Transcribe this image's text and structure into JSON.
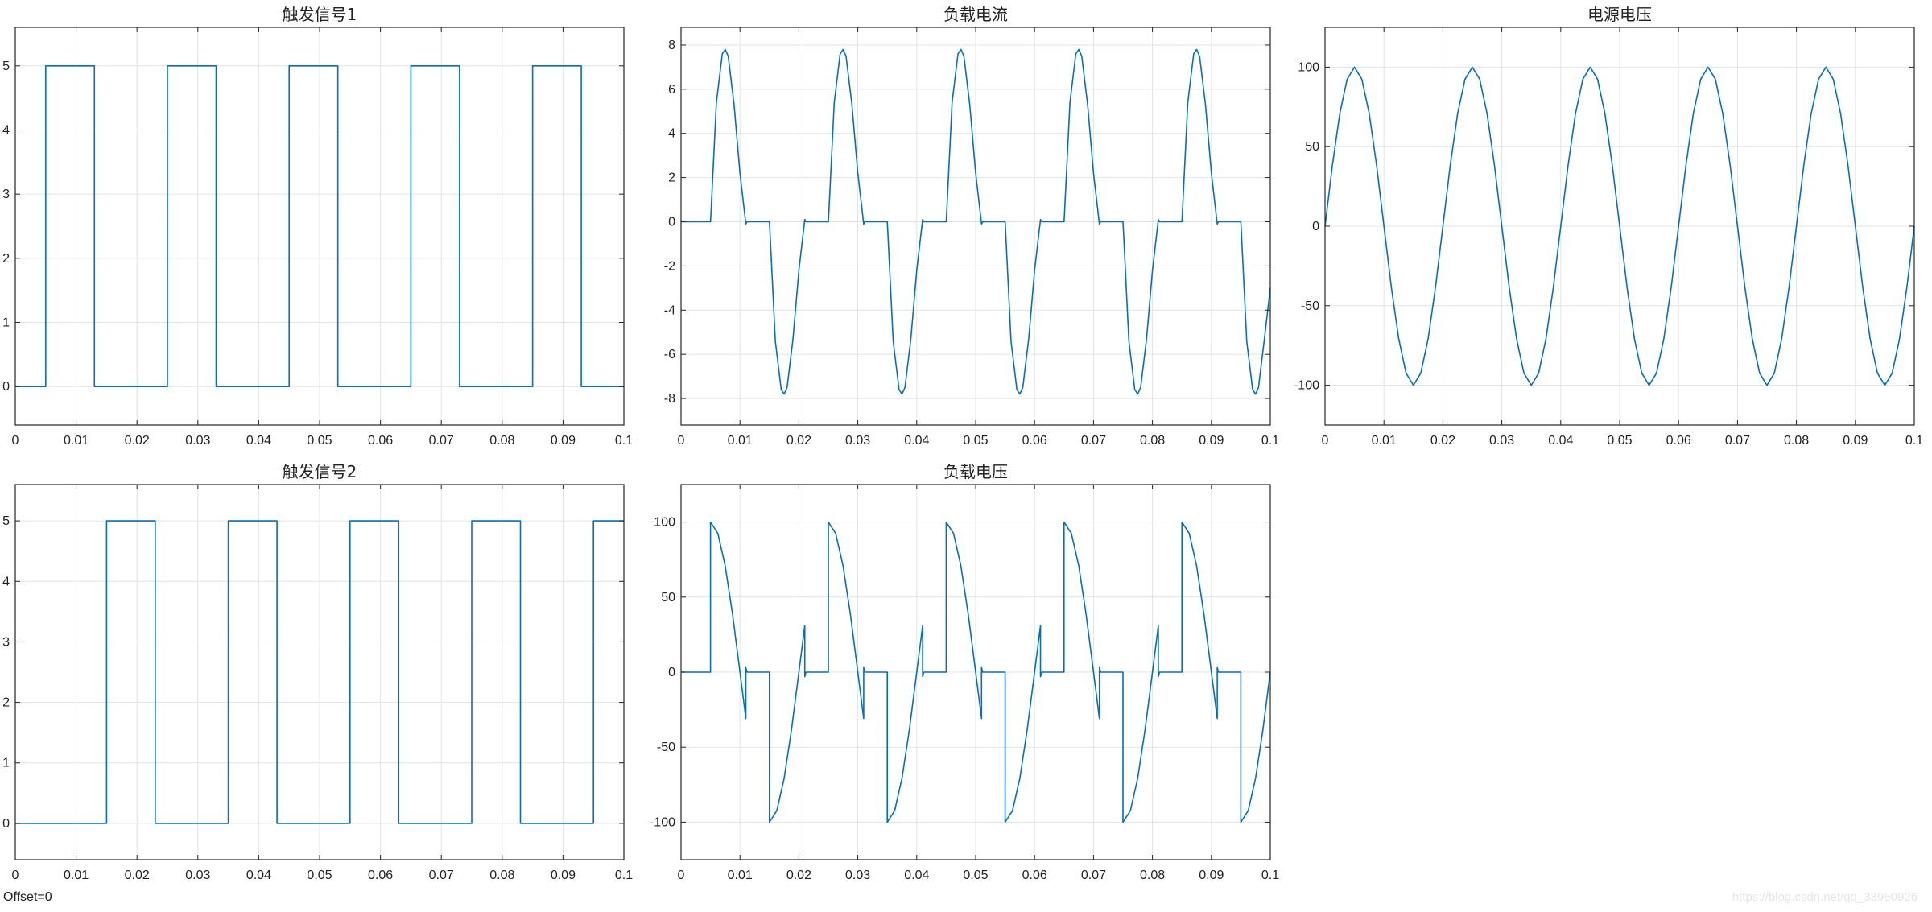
{
  "figure": {
    "offset_label": "Offset=0",
    "watermark": "https://blog.csdn.net/qq_33950926"
  },
  "style": {
    "line_color": "#0072BD",
    "grid_color": "#e3e3e3",
    "axis_color": "#262626"
  },
  "chart_data": [
    {
      "id": "trigger1",
      "type": "line",
      "title": "触发信号1",
      "xlim": [
        0,
        0.1
      ],
      "ylim": [
        -0.6,
        5.6
      ],
      "xticks": [
        0,
        0.01,
        0.02,
        0.03,
        0.04,
        0.05,
        0.06,
        0.07,
        0.08,
        0.09,
        0.1
      ],
      "yticks": [
        0,
        1,
        2,
        3,
        4,
        5
      ],
      "grid": true,
      "series": [
        {
          "x": [
            0,
            0.005,
            0.005,
            0.013,
            0.013,
            0.025,
            0.025,
            0.033,
            0.033,
            0.045,
            0.045,
            0.053,
            0.053,
            0.065,
            0.065,
            0.073,
            0.073,
            0.085,
            0.085,
            0.093,
            0.093,
            0.1
          ],
          "y": [
            0,
            0,
            5,
            5,
            0,
            0,
            5,
            5,
            0,
            0,
            5,
            5,
            0,
            0,
            5,
            5,
            0,
            0,
            5,
            5,
            0,
            0
          ]
        }
      ]
    },
    {
      "id": "load_current",
      "type": "line",
      "title": "负载电流",
      "xlim": [
        0,
        0.1
      ],
      "ylim": [
        -9.2,
        8.8
      ],
      "xticks": [
        0,
        0.01,
        0.02,
        0.03,
        0.04,
        0.05,
        0.06,
        0.07,
        0.08,
        0.09,
        0.1
      ],
      "yticks": [
        -8,
        -6,
        -4,
        -2,
        0,
        2,
        4,
        6,
        8
      ],
      "grid": true,
      "series": [
        {
          "x": [
            0,
            0.005,
            0.0051,
            0.006,
            0.007,
            0.0075,
            0.008,
            0.009,
            0.01,
            0.011,
            0.0112,
            0.0148,
            0.015,
            0.0151,
            0.016,
            0.017,
            0.0175,
            0.018,
            0.019,
            0.02,
            0.021,
            0.0212,
            0.0248,
            0.025,
            0.0251,
            0.026,
            0.027,
            0.0275,
            0.028,
            0.029,
            0.03,
            0.031,
            0.0312,
            0.0348,
            0.035,
            0.0351,
            0.036,
            0.037,
            0.0375,
            0.038,
            0.039,
            0.04,
            0.041,
            0.0412,
            0.0448,
            0.045,
            0.0451,
            0.046,
            0.047,
            0.0475,
            0.048,
            0.049,
            0.05,
            0.051,
            0.0512,
            0.0548,
            0.055,
            0.0551,
            0.056,
            0.057,
            0.0575,
            0.058,
            0.059,
            0.06,
            0.061,
            0.0612,
            0.0648,
            0.065,
            0.0651,
            0.066,
            0.067,
            0.0675,
            0.068,
            0.069,
            0.07,
            0.071,
            0.0712,
            0.0748,
            0.075,
            0.0751,
            0.076,
            0.077,
            0.0775,
            0.078,
            0.079,
            0.08,
            0.081,
            0.0812,
            0.0848,
            0.085,
            0.0851,
            0.086,
            0.087,
            0.0875,
            0.088,
            0.089,
            0.09,
            0.091,
            0.0912,
            0.0948,
            0.095,
            0.0951,
            0.096,
            0.097,
            0.0975,
            0.098,
            0.099,
            0.1
          ],
          "y": [
            0,
            0,
            0.5,
            5.4,
            7.6,
            7.8,
            7.5,
            5.3,
            2.2,
            -0.1,
            0,
            0,
            0,
            -0.5,
            -5.4,
            -7.6,
            -7.8,
            -7.5,
            -5.3,
            -2.2,
            0.1,
            0,
            0,
            0,
            0.5,
            5.4,
            7.6,
            7.8,
            7.5,
            5.3,
            2.2,
            -0.1,
            0,
            0,
            0,
            -0.5,
            -5.4,
            -7.6,
            -7.8,
            -7.5,
            -5.3,
            -2.2,
            0.1,
            0,
            0,
            0,
            0.5,
            5.4,
            7.6,
            7.8,
            7.5,
            5.3,
            2.2,
            -0.1,
            0,
            0,
            0,
            -0.5,
            -5.4,
            -7.6,
            -7.8,
            -7.5,
            -5.3,
            -2.2,
            0.1,
            0,
            0,
            0,
            0.5,
            5.4,
            7.6,
            7.8,
            7.5,
            5.3,
            2.2,
            -0.1,
            0,
            0,
            0,
            -0.5,
            -5.4,
            -7.6,
            -7.8,
            -7.5,
            -5.3,
            -2.2,
            0.1,
            0,
            0,
            0,
            0.5,
            5.4,
            7.6,
            7.8,
            7.5,
            5.3,
            2.2,
            -0.1,
            0,
            0,
            0,
            -0.5,
            -5.4,
            -7.6,
            -7.8,
            -7.5,
            -5.3,
            -3.0
          ]
        }
      ]
    },
    {
      "id": "source_voltage",
      "type": "line",
      "title": "电源电压",
      "xlim": [
        0,
        0.1
      ],
      "ylim": [
        -125,
        125
      ],
      "xticks": [
        0,
        0.01,
        0.02,
        0.03,
        0.04,
        0.05,
        0.06,
        0.07,
        0.08,
        0.09,
        0.1
      ],
      "yticks": [
        -100,
        -50,
        0,
        50,
        100
      ],
      "grid": true,
      "series": [
        {
          "x": [
            0,
            0.00125,
            0.0025,
            0.00375,
            0.005,
            0.00625,
            0.0075,
            0.00875,
            0.01,
            0.01125,
            0.0125,
            0.01375,
            0.015,
            0.01625,
            0.0175,
            0.01875,
            0.02,
            0.02125,
            0.0225,
            0.02375,
            0.025,
            0.02625,
            0.0275,
            0.02875,
            0.03,
            0.03125,
            0.0325,
            0.03375,
            0.035,
            0.03625,
            0.0375,
            0.03875,
            0.04,
            0.04125,
            0.0425,
            0.04375,
            0.045,
            0.04625,
            0.0475,
            0.04875,
            0.05,
            0.05125,
            0.0525,
            0.05375,
            0.055,
            0.05625,
            0.0575,
            0.05875,
            0.06,
            0.06125,
            0.0625,
            0.06375,
            0.065,
            0.06625,
            0.0675,
            0.06875,
            0.07,
            0.07125,
            0.0725,
            0.07375,
            0.075,
            0.07625,
            0.0775,
            0.07875,
            0.08,
            0.08125,
            0.0825,
            0.08375,
            0.085,
            0.08625,
            0.0875,
            0.08875,
            0.09,
            0.09125,
            0.0925,
            0.09375,
            0.095,
            0.09625,
            0.0975,
            0.09875,
            0.1
          ],
          "y": [
            0,
            38.3,
            70.7,
            92.4,
            100,
            92.4,
            70.7,
            38.3,
            0,
            -38.3,
            -70.7,
            -92.4,
            -100,
            -92.4,
            -70.7,
            -38.3,
            0,
            38.3,
            70.7,
            92.4,
            100,
            92.4,
            70.7,
            38.3,
            0,
            -38.3,
            -70.7,
            -92.4,
            -100,
            -92.4,
            -70.7,
            -38.3,
            0,
            38.3,
            70.7,
            92.4,
            100,
            92.4,
            70.7,
            38.3,
            0,
            -38.3,
            -70.7,
            -92.4,
            -100,
            -92.4,
            -70.7,
            -38.3,
            0,
            38.3,
            70.7,
            92.4,
            100,
            92.4,
            70.7,
            38.3,
            0,
            -38.3,
            -70.7,
            -92.4,
            -100,
            -92.4,
            -70.7,
            -38.3,
            0,
            38.3,
            70.7,
            92.4,
            100,
            92.4,
            70.7,
            38.3,
            0,
            -38.3,
            -70.7,
            -92.4,
            -100,
            -92.4,
            -70.7,
            -38.3,
            0
          ]
        }
      ]
    },
    {
      "id": "trigger2",
      "type": "line",
      "title": "触发信号2",
      "xlim": [
        0,
        0.1
      ],
      "ylim": [
        -0.6,
        5.6
      ],
      "xticks": [
        0,
        0.01,
        0.02,
        0.03,
        0.04,
        0.05,
        0.06,
        0.07,
        0.08,
        0.09,
        0.1
      ],
      "yticks": [
        0,
        1,
        2,
        3,
        4,
        5
      ],
      "grid": true,
      "series": [
        {
          "x": [
            0,
            0.015,
            0.015,
            0.023,
            0.023,
            0.035,
            0.035,
            0.043,
            0.043,
            0.055,
            0.055,
            0.063,
            0.063,
            0.075,
            0.075,
            0.083,
            0.083,
            0.095,
            0.095,
            0.1
          ],
          "y": [
            0,
            0,
            5,
            5,
            0,
            0,
            5,
            5,
            0,
            0,
            5,
            5,
            0,
            0,
            5,
            5,
            0,
            0,
            5,
            5
          ]
        }
      ]
    },
    {
      "id": "load_voltage",
      "type": "line",
      "title": "负载电压",
      "xlim": [
        0,
        0.1
      ],
      "ylim": [
        -125,
        125
      ],
      "xticks": [
        0,
        0.01,
        0.02,
        0.03,
        0.04,
        0.05,
        0.06,
        0.07,
        0.08,
        0.09,
        0.1
      ],
      "yticks": [
        -100,
        -50,
        0,
        50,
        100
      ],
      "grid": true,
      "series": [
        {
          "x": [
            0,
            0.005,
            0.005,
            0.00625,
            0.0075,
            0.00875,
            0.01,
            0.011,
            0.011,
            0.0112,
            0.0148,
            0.015,
            0.015,
            0.01625,
            0.0175,
            0.01875,
            0.02,
            0.021,
            0.021,
            0.0212,
            0.0248,
            0.025,
            0.025,
            0.02625,
            0.0275,
            0.02875,
            0.03,
            0.031,
            0.031,
            0.0312,
            0.0348,
            0.035,
            0.035,
            0.03625,
            0.0375,
            0.03875,
            0.04,
            0.041,
            0.041,
            0.0412,
            0.0448,
            0.045,
            0.045,
            0.04625,
            0.0475,
            0.04875,
            0.05,
            0.051,
            0.051,
            0.0512,
            0.0548,
            0.055,
            0.055,
            0.05625,
            0.0575,
            0.05875,
            0.06,
            0.061,
            0.061,
            0.0612,
            0.0648,
            0.065,
            0.065,
            0.06625,
            0.0675,
            0.06875,
            0.07,
            0.071,
            0.071,
            0.0712,
            0.0748,
            0.075,
            0.075,
            0.07625,
            0.0775,
            0.07875,
            0.08,
            0.081,
            0.081,
            0.0812,
            0.0848,
            0.085,
            0.085,
            0.08625,
            0.0875,
            0.08875,
            0.09,
            0.091,
            0.091,
            0.0912,
            0.0948,
            0.095,
            0.095,
            0.09625,
            0.0975,
            0.09875,
            0.1
          ],
          "y": [
            0,
            0,
            100,
            92.4,
            70.7,
            38.3,
            0,
            -30.9,
            3,
            0,
            0,
            0,
            -100,
            -92.4,
            -70.7,
            -38.3,
            0,
            30.9,
            -3,
            0,
            0,
            0,
            100,
            92.4,
            70.7,
            38.3,
            0,
            -30.9,
            3,
            0,
            0,
            0,
            -100,
            -92.4,
            -70.7,
            -38.3,
            0,
            30.9,
            -3,
            0,
            0,
            0,
            100,
            92.4,
            70.7,
            38.3,
            0,
            -30.9,
            3,
            0,
            0,
            0,
            -100,
            -92.4,
            -70.7,
            -38.3,
            0,
            30.9,
            -3,
            0,
            0,
            0,
            100,
            92.4,
            70.7,
            38.3,
            0,
            -30.9,
            3,
            0,
            0,
            0,
            -100,
            -92.4,
            -70.7,
            -38.3,
            0,
            30.9,
            -3,
            0,
            0,
            0,
            100,
            92.4,
            70.7,
            38.3,
            0,
            -30.9,
            3,
            0,
            0,
            0,
            -100,
            -92.4,
            -70.7,
            -38.3,
            0
          ]
        }
      ]
    }
  ]
}
